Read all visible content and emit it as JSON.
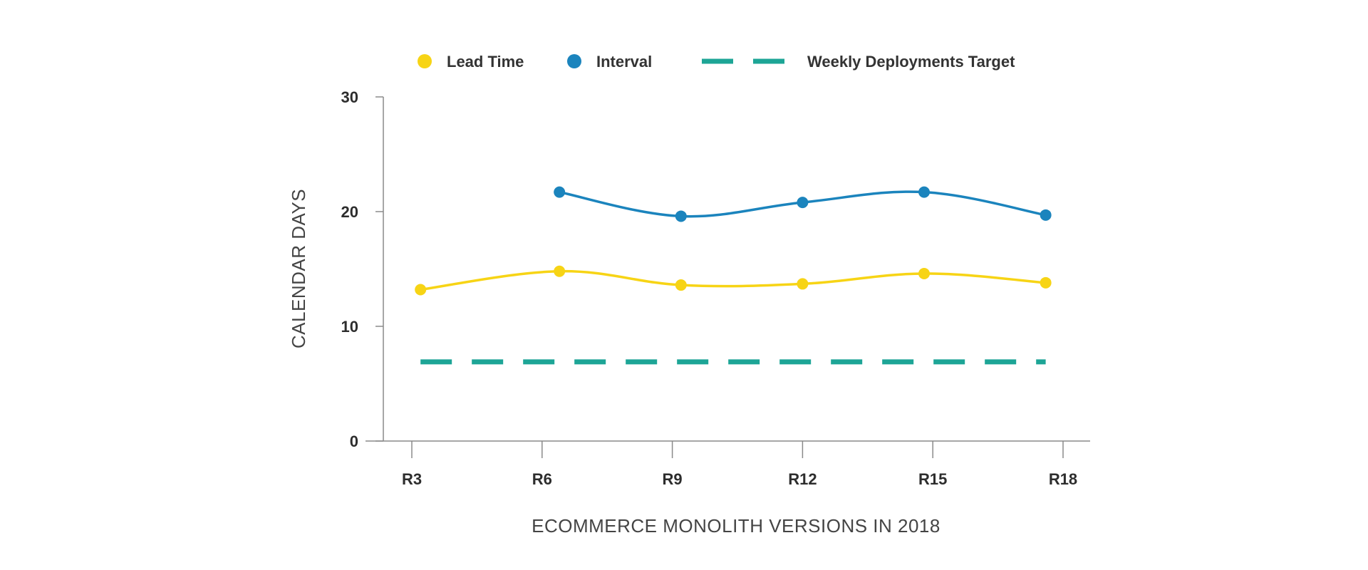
{
  "chart_data": {
    "type": "line",
    "title": "",
    "xlabel": "ECOMMERCE MONOLITH VERSIONS IN 2018",
    "ylabel": "CALENDAR DAYS",
    "x_ticks": [
      "R3",
      "R6",
      "R9",
      "R12",
      "R15",
      "R18"
    ],
    "y_ticks": [
      0,
      10,
      20,
      30
    ],
    "ylim": [
      0,
      30
    ],
    "grid": false,
    "legend_position": "top",
    "series": [
      {
        "name": "Lead Time",
        "color": "#F7D415",
        "style": "solid",
        "marker": true,
        "points": [
          {
            "x": 3.2,
            "y": 13.2
          },
          {
            "x": 6.4,
            "y": 14.8
          },
          {
            "x": 9.2,
            "y": 13.6
          },
          {
            "x": 12.0,
            "y": 13.7
          },
          {
            "x": 14.8,
            "y": 14.6
          },
          {
            "x": 17.6,
            "y": 13.8
          }
        ]
      },
      {
        "name": "Interval",
        "color": "#1B84BD",
        "style": "solid",
        "marker": true,
        "points": [
          {
            "x": 6.4,
            "y": 21.7
          },
          {
            "x": 9.2,
            "y": 19.6
          },
          {
            "x": 12.0,
            "y": 20.8
          },
          {
            "x": 14.8,
            "y": 21.7
          },
          {
            "x": 17.6,
            "y": 19.7
          }
        ]
      },
      {
        "name": "Weekly Deployments Target",
        "color": "#1DA596",
        "style": "dashed",
        "marker": false,
        "points": [
          {
            "x": 3.2,
            "y": 6.9
          },
          {
            "x": 17.6,
            "y": 6.9
          }
        ]
      }
    ]
  }
}
